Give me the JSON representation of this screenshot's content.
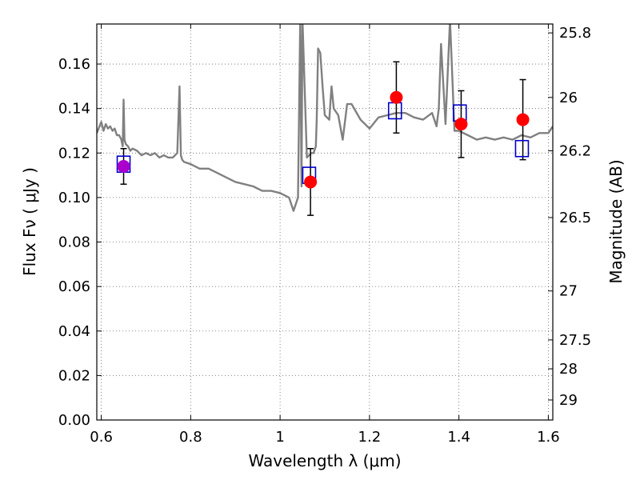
{
  "chart_data": {
    "type": "scatter",
    "title": "",
    "xlabel": "Wavelength  λ (μm)",
    "ylabel": "Flux  Fν  ( μJy )",
    "ylabel_right": "Magnitude (AB)",
    "xlim": [
      0.59,
      1.61
    ],
    "ylim": [
      0.0,
      0.178
    ],
    "grid": true,
    "x_ticks": [
      0.6,
      0.8,
      1.0,
      1.2,
      1.4,
      1.6
    ],
    "x_tick_labels": [
      "0.6",
      "0.8",
      "1",
      "1.2",
      "1.4",
      "1.6"
    ],
    "y_ticks": [
      0.0,
      0.02,
      0.04,
      0.06,
      0.08,
      0.1,
      0.12,
      0.14,
      0.16
    ],
    "y_tick_labels": [
      "0.00",
      "0.02",
      "0.04",
      "0.06",
      "0.08",
      "0.10",
      "0.12",
      "0.14",
      "0.16"
    ],
    "right_ticks": [
      {
        "label": "25.8",
        "flux": 0.174
      },
      {
        "label": "26",
        "flux": 0.145
      },
      {
        "label": "26.2",
        "flux": 0.121
      },
      {
        "label": "26.5",
        "flux": 0.091
      },
      {
        "label": "27",
        "flux": 0.058
      },
      {
        "label": "27.5",
        "flux": 0.036
      },
      {
        "label": "28",
        "flux": 0.023
      },
      {
        "label": "29",
        "flux": 0.009
      }
    ],
    "series": [
      {
        "kind": "model_spectrum",
        "color": "#808080",
        "x": [
          0.59,
          0.6,
          0.605,
          0.61,
          0.615,
          0.62,
          0.625,
          0.63,
          0.635,
          0.64,
          0.645,
          0.648,
          0.65,
          0.652,
          0.655,
          0.66,
          0.665,
          0.67,
          0.68,
          0.69,
          0.7,
          0.71,
          0.72,
          0.73,
          0.74,
          0.75,
          0.76,
          0.77,
          0.775,
          0.778,
          0.781,
          0.785,
          0.8,
          0.82,
          0.84,
          0.86,
          0.88,
          0.9,
          0.92,
          0.94,
          0.96,
          0.98,
          1.0,
          1.02,
          1.03,
          1.04,
          1.045,
          1.048,
          1.05,
          1.06,
          1.07,
          1.075,
          1.08,
          1.082,
          1.085,
          1.09,
          1.095,
          1.1,
          1.11,
          1.115,
          1.12,
          1.13,
          1.14,
          1.15,
          1.16,
          1.18,
          1.2,
          1.22,
          1.24,
          1.26,
          1.28,
          1.3,
          1.32,
          1.34,
          1.35,
          1.355,
          1.36,
          1.37,
          1.38,
          1.39,
          1.4,
          1.42,
          1.44,
          1.46,
          1.48,
          1.5,
          1.52,
          1.54,
          1.56,
          1.58,
          1.6,
          1.61
        ],
        "y": [
          0.129,
          0.134,
          0.13,
          0.133,
          0.131,
          0.132,
          0.13,
          0.131,
          0.128,
          0.128,
          0.126,
          0.123,
          0.144,
          0.126,
          0.124,
          0.123,
          0.121,
          0.122,
          0.121,
          0.119,
          0.12,
          0.119,
          0.12,
          0.118,
          0.119,
          0.118,
          0.118,
          0.12,
          0.15,
          0.119,
          0.117,
          0.116,
          0.115,
          0.113,
          0.113,
          0.111,
          0.109,
          0.107,
          0.106,
          0.105,
          0.103,
          0.103,
          0.102,
          0.1,
          0.094,
          0.1,
          0.18,
          0.105,
          0.18,
          0.118,
          0.12,
          0.12,
          0.123,
          0.135,
          0.167,
          0.165,
          0.15,
          0.137,
          0.135,
          0.15,
          0.14,
          0.137,
          0.126,
          0.142,
          0.142,
          0.135,
          0.131,
          0.136,
          0.137,
          0.138,
          0.138,
          0.136,
          0.135,
          0.138,
          0.132,
          0.14,
          0.169,
          0.133,
          0.18,
          0.13,
          0.13,
          0.128,
          0.126,
          0.127,
          0.126,
          0.127,
          0.126,
          0.128,
          0.127,
          0.129,
          0.129,
          0.132
        ]
      },
      {
        "kind": "model_bandpass",
        "marker": "open-square",
        "color": "#0000cc",
        "x": [
          0.65,
          1.065,
          1.257,
          1.402,
          1.541
        ],
        "y": [
          0.115,
          0.11,
          0.139,
          0.138,
          0.122
        ]
      },
      {
        "kind": "observed",
        "marker": "filled-circle",
        "color": "#ff0000",
        "x": [
          0.65,
          1.068,
          1.26,
          1.405,
          1.543
        ],
        "y": [
          0.114,
          0.107,
          0.145,
          0.133,
          0.135
        ],
        "yerr": [
          0.008,
          0.015,
          0.016,
          0.015,
          0.018
        ]
      }
    ]
  }
}
